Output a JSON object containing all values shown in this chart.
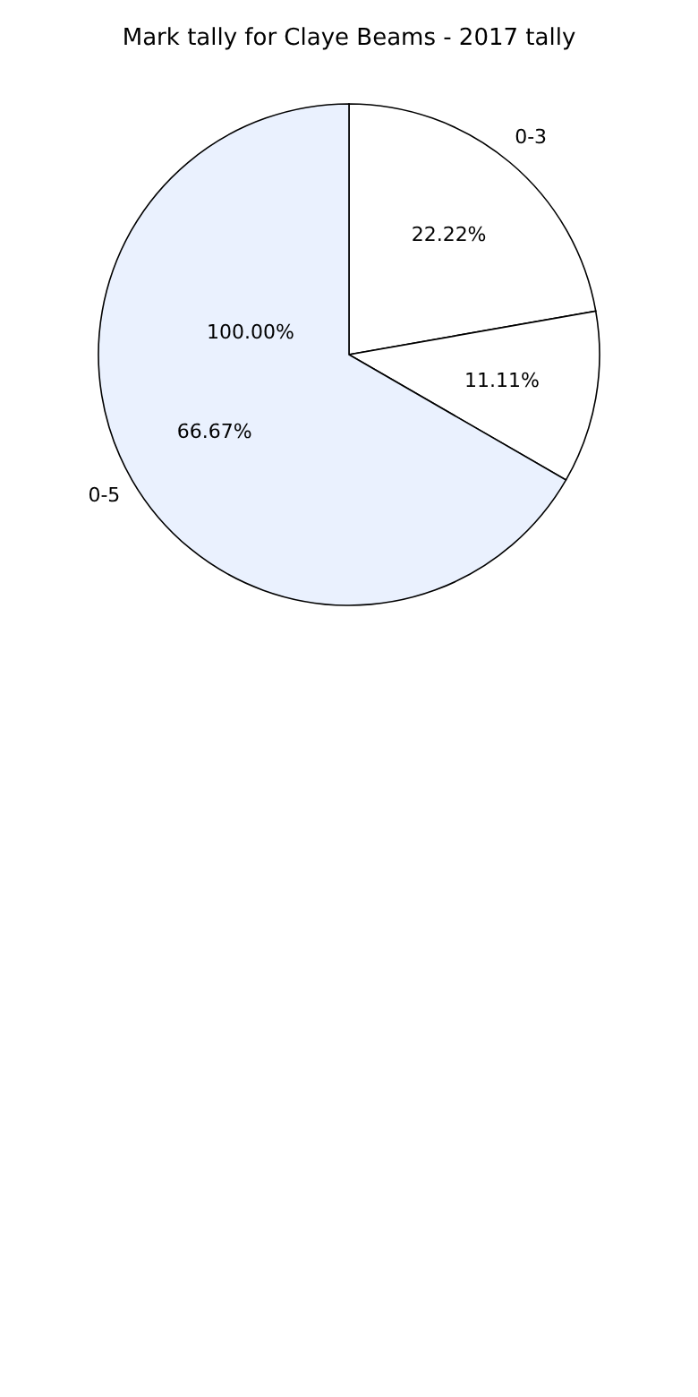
{
  "chart_data": {
    "type": "pie",
    "title": "Mark tally for Claye Beams - 2017 tally",
    "categories": [
      "0-3",
      null,
      "0-5"
    ],
    "values": [
      22.22,
      11.11,
      66.67
    ],
    "colors": [
      "#ffffff",
      "#ffffff",
      "#eaf1fe"
    ],
    "value_labels": [
      "22.22%",
      "11.11%",
      "66.67%"
    ],
    "annotations": [
      "100.00%"
    ]
  }
}
